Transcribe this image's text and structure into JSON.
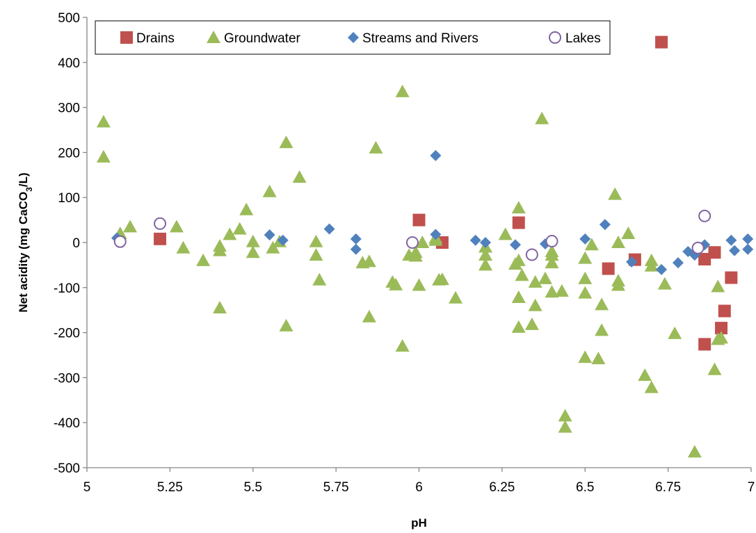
{
  "chart_data": {
    "type": "scatter",
    "title": "",
    "xlabel": "pH",
    "ylabel": {
      "main": "Net acidity  (mg CaCO",
      "sub": "3",
      "tail": "/L)"
    },
    "xlim": [
      5,
      7
    ],
    "ylim": [
      -500,
      500
    ],
    "x_ticks": [
      5,
      5.25,
      5.5,
      5.75,
      6,
      6.25,
      6.5,
      6.75,
      7
    ],
    "x_tick_labels": [
      "5",
      "5.25",
      "5.5",
      "5.75",
      "6",
      "6.25",
      "6.5",
      "6.75",
      "7"
    ],
    "y_ticks": [
      500,
      400,
      300,
      200,
      100,
      0,
      -100,
      -200,
      -300,
      -400,
      -500
    ],
    "y_tick_labels": [
      "500",
      "400",
      "300",
      "200",
      "100",
      "0",
      "-100",
      "-200",
      "-300",
      "-400",
      "-500"
    ],
    "grid": false,
    "legend": {
      "placement": "top",
      "border": true
    },
    "series": [
      {
        "name": "Drains",
        "marker": "square",
        "color": "#c0504d",
        "points": [
          [
            5.22,
            8
          ],
          [
            6.0,
            50
          ],
          [
            6.07,
            0
          ],
          [
            6.3,
            44
          ],
          [
            6.57,
            -58
          ],
          [
            6.65,
            -38
          ],
          [
            6.73,
            445
          ],
          [
            6.86,
            -37
          ],
          [
            6.89,
            -22
          ],
          [
            6.94,
            -78
          ],
          [
            6.92,
            -152
          ],
          [
            6.91,
            -190
          ],
          [
            6.86,
            -226
          ]
        ]
      },
      {
        "name": "Groundwater",
        "marker": "triangle",
        "color": "#9bbb59",
        "points": [
          [
            5.05,
            268
          ],
          [
            5.05,
            190
          ],
          [
            5.1,
            20
          ],
          [
            5.13,
            35
          ],
          [
            5.27,
            35
          ],
          [
            5.29,
            -12
          ],
          [
            5.35,
            -40
          ],
          [
            5.4,
            -8
          ],
          [
            5.4,
            -18
          ],
          [
            5.4,
            -145
          ],
          [
            5.43,
            18
          ],
          [
            5.46,
            30
          ],
          [
            5.48,
            73
          ],
          [
            5.5,
            2
          ],
          [
            5.5,
            -22
          ],
          [
            5.55,
            113
          ],
          [
            5.56,
            -12
          ],
          [
            5.58,
            2
          ],
          [
            5.6,
            222
          ],
          [
            5.6,
            -185
          ],
          [
            5.64,
            145
          ],
          [
            5.69,
            2
          ],
          [
            5.69,
            -28
          ],
          [
            5.7,
            -83
          ],
          [
            5.83,
            -45
          ],
          [
            5.85,
            -42
          ],
          [
            5.85,
            -165
          ],
          [
            5.87,
            210
          ],
          [
            5.92,
            -88
          ],
          [
            5.93,
            -94
          ],
          [
            5.95,
            335
          ],
          [
            5.95,
            -230
          ],
          [
            5.97,
            -28
          ],
          [
            5.99,
            -30
          ],
          [
            5.99,
            -22
          ],
          [
            6.0,
            -95
          ],
          [
            6.01,
            0
          ],
          [
            6.05,
            10
          ],
          [
            6.05,
            5
          ],
          [
            6.06,
            -83
          ],
          [
            6.07,
            -82
          ],
          [
            6.11,
            -123
          ],
          [
            6.2,
            -10
          ],
          [
            6.2,
            -28
          ],
          [
            6.2,
            -50
          ],
          [
            6.26,
            18
          ],
          [
            6.29,
            -48
          ],
          [
            6.3,
            77
          ],
          [
            6.3,
            -40
          ],
          [
            6.3,
            -122
          ],
          [
            6.3,
            -188
          ],
          [
            6.31,
            -73
          ],
          [
            6.34,
            -182
          ],
          [
            6.35,
            -88
          ],
          [
            6.35,
            -140
          ],
          [
            6.37,
            275
          ],
          [
            6.38,
            -80
          ],
          [
            6.4,
            -20
          ],
          [
            6.4,
            -28
          ],
          [
            6.4,
            -45
          ],
          [
            6.4,
            -110
          ],
          [
            6.43,
            -108
          ],
          [
            6.44,
            -385
          ],
          [
            6.44,
            -410
          ],
          [
            6.5,
            -35
          ],
          [
            6.5,
            -80
          ],
          [
            6.5,
            -112
          ],
          [
            6.5,
            -255
          ],
          [
            6.52,
            -5
          ],
          [
            6.54,
            -258
          ],
          [
            6.55,
            -138
          ],
          [
            6.55,
            -195
          ],
          [
            6.59,
            107
          ],
          [
            6.6,
            0
          ],
          [
            6.6,
            -85
          ],
          [
            6.6,
            -95
          ],
          [
            6.63,
            20
          ],
          [
            6.68,
            -295
          ],
          [
            6.7,
            -40
          ],
          [
            6.7,
            -52
          ],
          [
            6.7,
            -322
          ],
          [
            6.74,
            -92
          ],
          [
            6.77,
            -202
          ],
          [
            6.83,
            -465
          ],
          [
            6.89,
            -282
          ],
          [
            6.9,
            -98
          ],
          [
            6.9,
            -215
          ],
          [
            6.91,
            -212
          ]
        ]
      },
      {
        "name": "Streams and Rivers",
        "marker": "diamond",
        "color": "#4f81bd",
        "points": [
          [
            5.09,
            10
          ],
          [
            5.55,
            17
          ],
          [
            5.59,
            5
          ],
          [
            5.73,
            30
          ],
          [
            5.81,
            8
          ],
          [
            5.81,
            -15
          ],
          [
            6.05,
            18
          ],
          [
            6.05,
            193
          ],
          [
            6.17,
            5
          ],
          [
            6.2,
            0
          ],
          [
            6.29,
            -5
          ],
          [
            6.38,
            -3
          ],
          [
            6.5,
            8
          ],
          [
            6.56,
            40
          ],
          [
            6.64,
            -43
          ],
          [
            6.73,
            -60
          ],
          [
            6.78,
            -45
          ],
          [
            6.81,
            -20
          ],
          [
            6.83,
            -28
          ],
          [
            6.86,
            -5
          ],
          [
            6.94,
            5
          ],
          [
            6.95,
            -18
          ],
          [
            6.99,
            8
          ],
          [
            6.99,
            -15
          ]
        ]
      },
      {
        "name": "Lakes",
        "marker": "circle-open",
        "color": "#8064a2",
        "points": [
          [
            5.1,
            2
          ],
          [
            5.22,
            42
          ],
          [
            5.98,
            0
          ],
          [
            6.34,
            -27
          ],
          [
            6.4,
            3
          ],
          [
            6.84,
            -12
          ],
          [
            6.86,
            59
          ]
        ]
      }
    ]
  }
}
